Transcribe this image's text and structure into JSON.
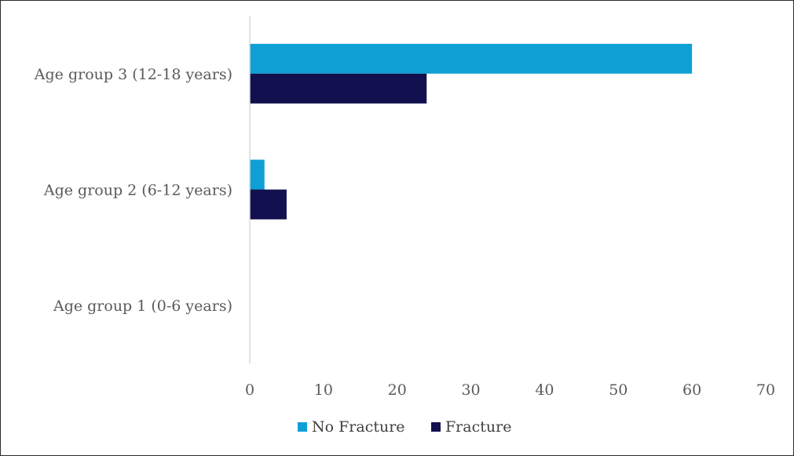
{
  "chart_data": {
    "type": "bar",
    "orientation": "horizontal",
    "categories": [
      "Age group 3 (12-18 years)",
      "Age group 2 (6-12 years)",
      "Age group 1 (0-6 years)"
    ],
    "series": [
      {
        "name": "No Fracture",
        "color": "#0f9fd4",
        "values": [
          60,
          2,
          0
        ]
      },
      {
        "name": "Fracture",
        "color": "#13104f",
        "values": [
          24,
          5,
          0
        ]
      }
    ],
    "xlim": [
      0,
      70
    ],
    "xticks": [
      "0",
      "10",
      "20",
      "30",
      "40",
      "50",
      "60",
      "70"
    ],
    "title": "",
    "xlabel": "",
    "ylabel": "",
    "grid": false,
    "legend": "bottom-center"
  }
}
